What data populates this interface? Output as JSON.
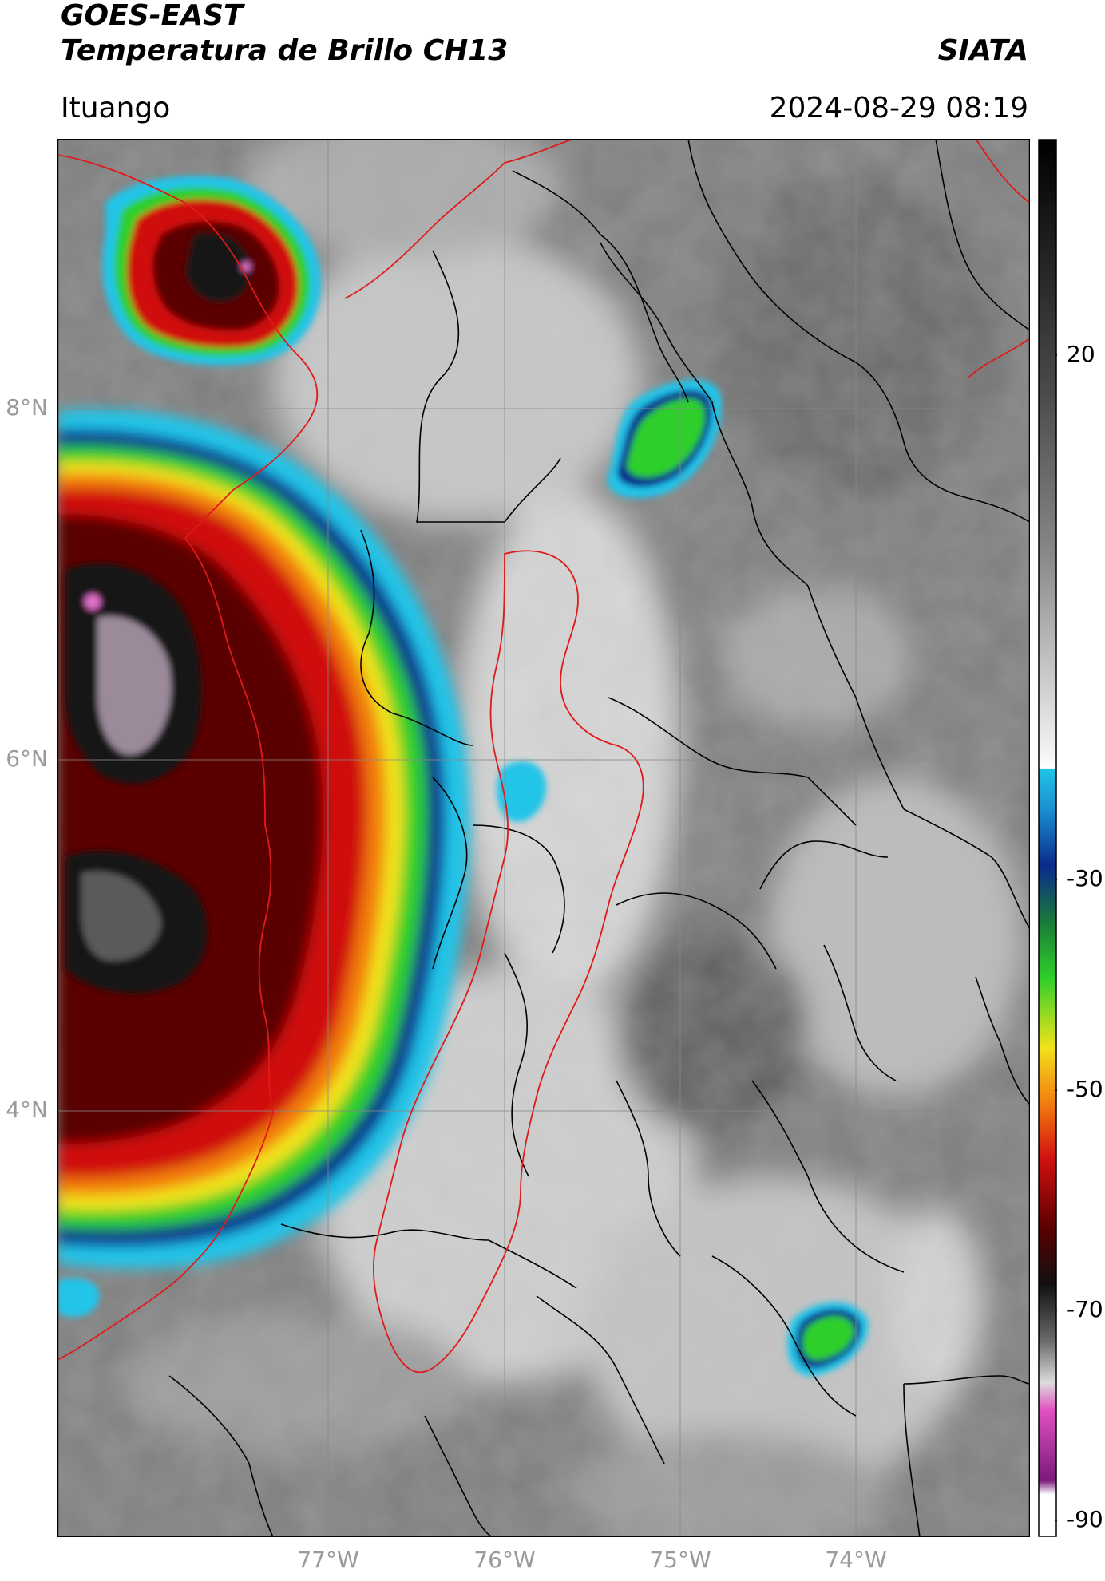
{
  "header": {
    "satellite": "GOES-EAST",
    "product": "Temperatura de Brillo CH13",
    "organization": "SIATA",
    "region": "Ituango",
    "datetime": "2024-08-29 08:19"
  },
  "map": {
    "lat_ticks": [
      "8°N",
      "6°N",
      "4°N"
    ],
    "lon_ticks": [
      "77°W",
      "76°W",
      "75°W",
      "74°W"
    ],
    "gridlines": true
  },
  "colorbar": {
    "ticks": [
      "20",
      "-30",
      "-50",
      "-70",
      "-90"
    ],
    "colors": {
      "warm": "#5a5a5a",
      "neutral": "#ffffff",
      "cyan": "#21c4e8",
      "blue": "#0a2a8c",
      "green": "#2ecf2a",
      "yellow": "#f2e21a",
      "orange": "#f27d10",
      "red": "#d01010",
      "darkred": "#5a0000",
      "black": "#111111",
      "magenta": "#e050c0",
      "purple": "#7a1a7a"
    }
  }
}
